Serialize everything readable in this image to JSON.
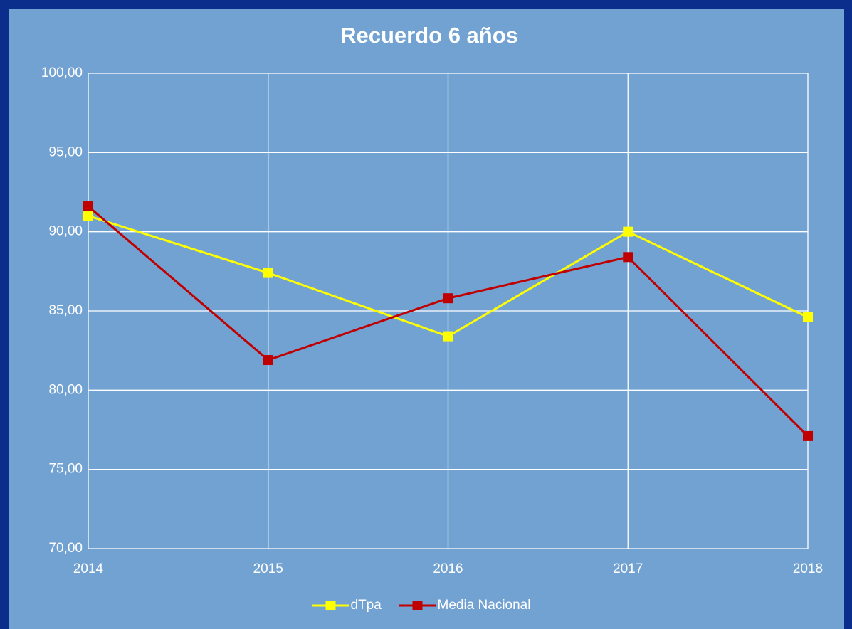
{
  "chart_data": {
    "type": "line",
    "title": "Recuerdo 6 años",
    "categories": [
      "2014",
      "2015",
      "2016",
      "2017",
      "2018"
    ],
    "series": [
      {
        "name": "dTpa",
        "color": "#ffff00",
        "values": [
          91.0,
          87.4,
          83.4,
          90.0,
          84.6
        ]
      },
      {
        "name": "Media Nacional",
        "color": "#c00000",
        "values": [
          91.6,
          81.9,
          85.8,
          88.4,
          77.1
        ]
      }
    ],
    "ylim": [
      70,
      100
    ],
    "yticks": [
      {
        "value": 70,
        "label": "70,00"
      },
      {
        "value": 75,
        "label": "75,00"
      },
      {
        "value": 80,
        "label": "80,00"
      },
      {
        "value": 85,
        "label": "85,00"
      },
      {
        "value": 90,
        "label": "90,00"
      },
      {
        "value": 95,
        "label": "95,00"
      },
      {
        "value": 100,
        "label": "100,00"
      }
    ],
    "grid": true,
    "legend": "bottom"
  }
}
